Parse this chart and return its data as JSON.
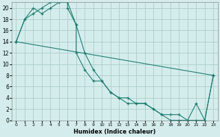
{
  "xlabel": "Humidex (Indice chaleur)",
  "ylabel": "",
  "bg_color": "#d4edec",
  "grid_color": "#b0d0cc",
  "line_color": "#1a7a6e",
  "xlim": [
    -0.5,
    23.5
  ],
  "ylim": [
    0,
    21
  ],
  "xticks": [
    0,
    1,
    2,
    3,
    4,
    5,
    6,
    7,
    8,
    9,
    10,
    11,
    12,
    13,
    14,
    15,
    16,
    17,
    18,
    19,
    20,
    21,
    22,
    23
  ],
  "yticks": [
    0,
    2,
    4,
    6,
    8,
    10,
    12,
    14,
    16,
    18,
    20
  ],
  "series1_x": [
    0,
    1,
    2,
    3,
    4,
    5,
    6,
    7,
    8,
    9,
    10,
    11,
    12,
    13,
    14,
    15,
    16,
    17,
    18,
    19,
    20,
    21,
    22,
    23
  ],
  "series1_y": [
    14,
    18,
    19,
    20,
    21,
    21,
    21,
    17,
    12,
    9,
    7,
    5,
    4,
    3,
    3,
    3,
    2,
    1,
    0,
    0,
    0,
    3,
    0,
    8
  ],
  "series2_x": [
    0,
    1,
    2,
    3,
    4,
    5,
    6,
    6,
    7,
    7,
    8,
    9,
    10,
    11,
    12,
    13,
    14,
    15,
    16,
    17,
    18,
    19,
    20,
    21,
    22,
    23
  ],
  "series2_y": [
    14,
    18,
    20,
    19,
    20,
    21,
    21,
    20,
    17,
    12,
    9,
    7,
    7,
    5,
    4,
    4,
    3,
    3,
    2,
    1,
    1,
    1,
    0,
    0,
    0,
    8
  ],
  "series3_x": [
    0,
    23
  ],
  "series3_y": [
    14,
    8
  ]
}
